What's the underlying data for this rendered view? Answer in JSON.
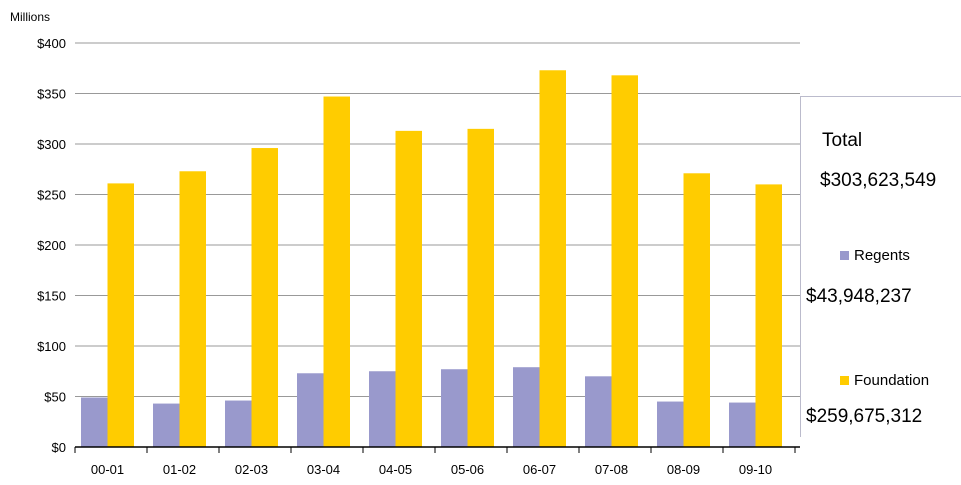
{
  "chart_data": {
    "type": "bar",
    "unit_label": "Millions",
    "categories": [
      "00-01",
      "01-02",
      "02-03",
      "03-04",
      "04-05",
      "05-06",
      "06-07",
      "07-08",
      "08-09",
      "09-10"
    ],
    "ylim": [
      0,
      400
    ],
    "yticks": [
      0,
      50,
      100,
      150,
      200,
      250,
      300,
      350,
      400
    ],
    "ytick_labels": [
      "$0",
      "$50",
      "$100",
      "$150",
      "$200",
      "$250",
      "$300",
      "$350",
      "$400"
    ],
    "grid": true,
    "series": [
      {
        "name": "Regents",
        "color": "#9999cc",
        "values": [
          49,
          43,
          46,
          73,
          75,
          77,
          79,
          70,
          45,
          44
        ]
      },
      {
        "name": "Foundation",
        "color": "#ffcc00",
        "values": [
          261,
          273,
          296,
          347,
          313,
          315,
          373,
          368,
          271,
          260
        ]
      }
    ]
  },
  "legend": {
    "total_title": "Total",
    "total_value": "$303,623,549",
    "regents_label": "Regents",
    "regents_value": "$43,948,237",
    "foundation_label": "Foundation",
    "foundation_value": "$259,675,312"
  }
}
